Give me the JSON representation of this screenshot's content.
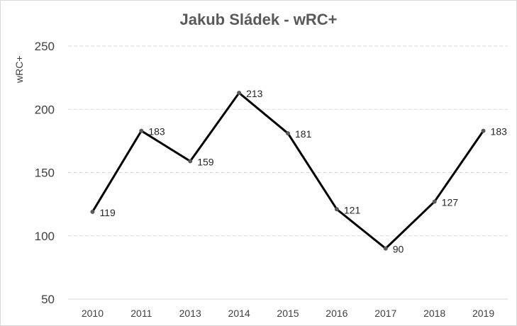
{
  "chart_data": {
    "type": "line",
    "title": "Jakub Sládek - wRC+",
    "xlabel": "",
    "ylabel": "wRC+",
    "categories": [
      "2010",
      "2011",
      "2013",
      "2014",
      "2015",
      "2016",
      "2017",
      "2018",
      "2019"
    ],
    "series": [
      {
        "values": [
          119,
          183,
          159,
          213,
          181,
          121,
          90,
          127,
          183
        ]
      }
    ],
    "ylim": [
      50,
      250
    ],
    "yticks": [
      50,
      100,
      150,
      200,
      250
    ],
    "grid": true,
    "data_labels": true,
    "colors": {
      "line": "#000000",
      "marker": "#595959",
      "grid": "#d9d9d9"
    }
  }
}
